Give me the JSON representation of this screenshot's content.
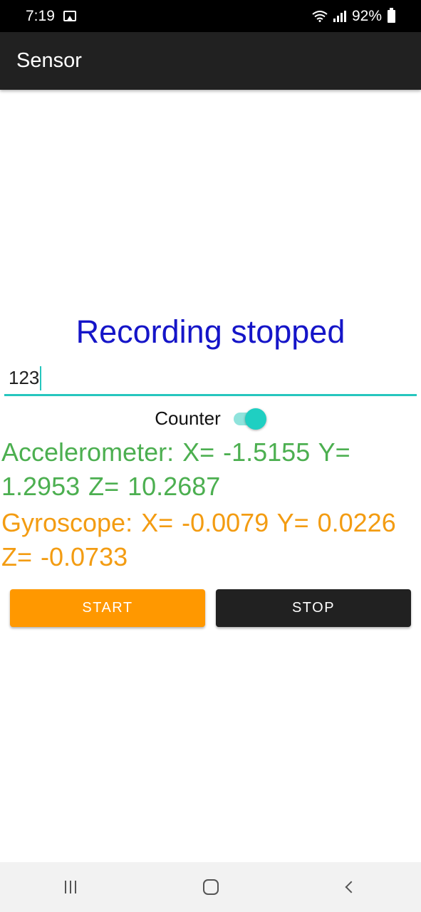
{
  "status_bar": {
    "time": "7:19",
    "battery": "92%",
    "icons": [
      "gallery-icon",
      "wifi-icon",
      "signal-icon",
      "battery-icon"
    ]
  },
  "app_bar": {
    "title": "Sensor"
  },
  "main": {
    "recording_status": "Recording stopped",
    "input_value": "123",
    "counter_label": "Counter",
    "counter_on": true,
    "accelerometer": "Accelerometer:  X= -1.5155  Y= 1.2953  Z= 10.2687",
    "gyroscope": "Gyroscope:  X= -0.0079  Y= 0.0226  Z= -0.0733",
    "start_label": "START",
    "stop_label": "STOP"
  },
  "colors": {
    "accent": "#26c6be",
    "status_text": "#1515c8",
    "accelerometer": "#4caf50",
    "gyroscope": "#f39c12",
    "start_button": "#ff9800",
    "stop_button": "#212121"
  },
  "nav_bar": {
    "icons": [
      "recent-apps-icon",
      "home-icon",
      "back-icon"
    ]
  }
}
